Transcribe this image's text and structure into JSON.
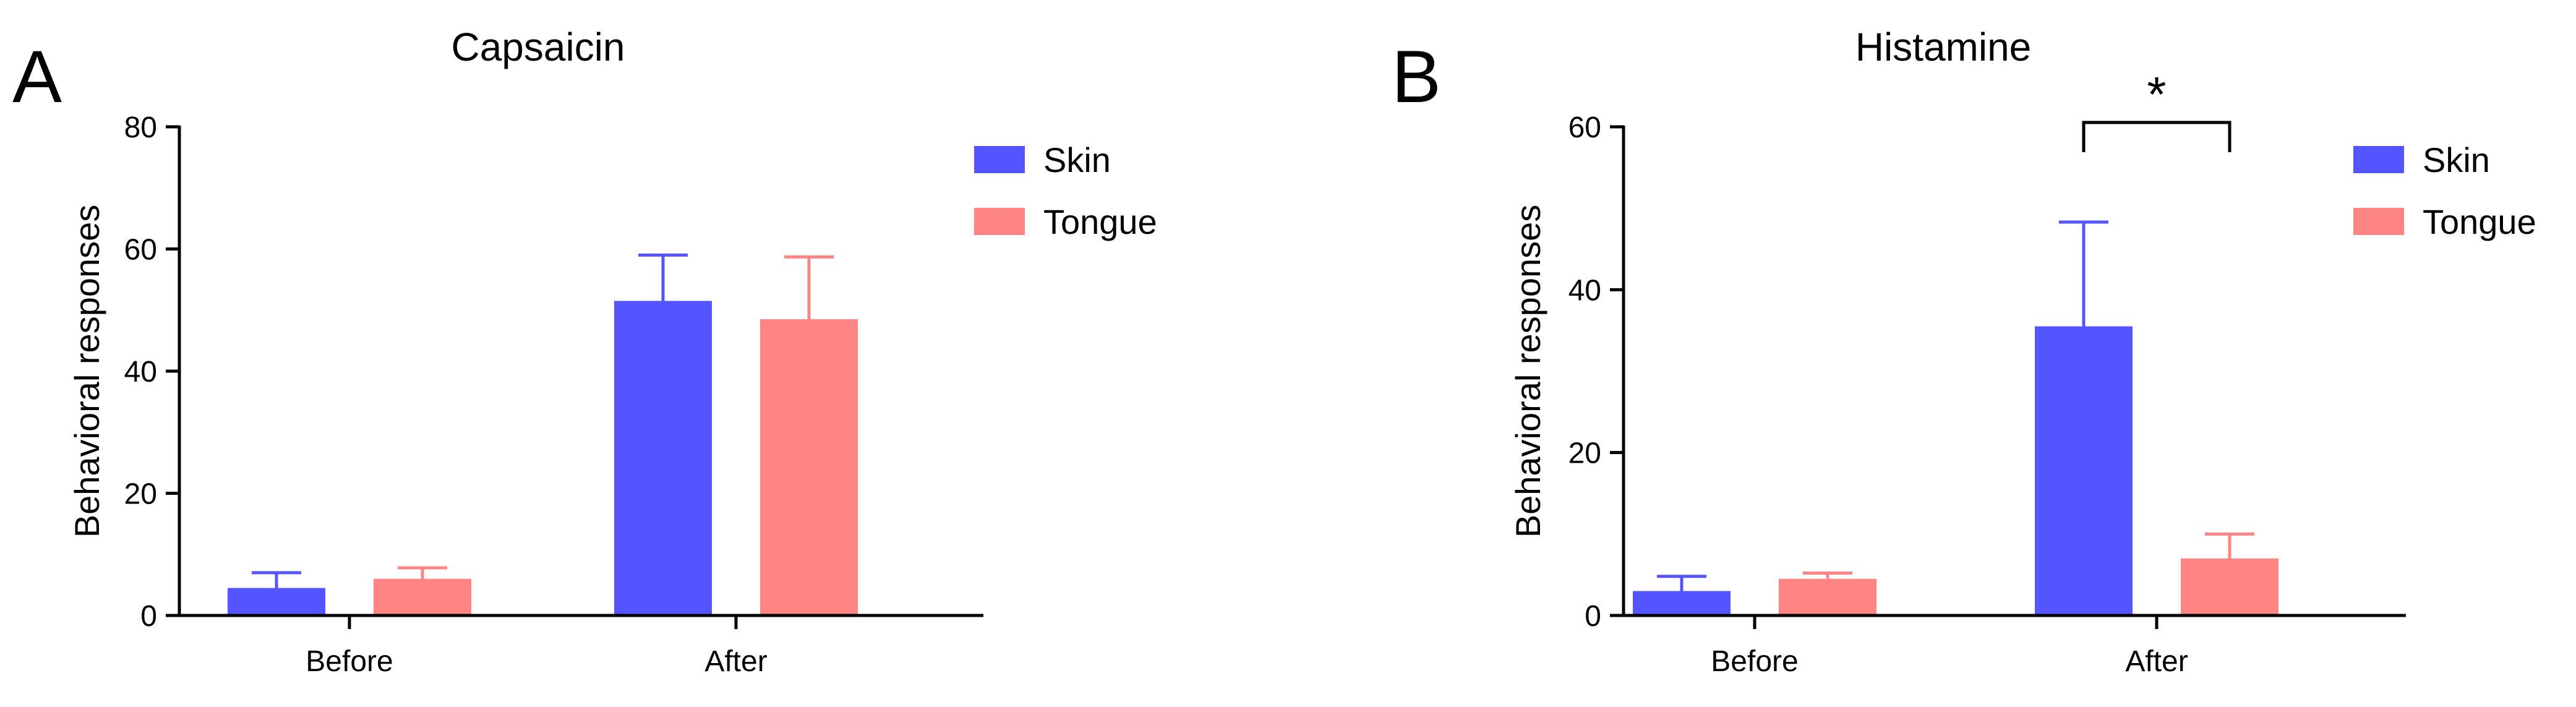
{
  "chart_data": [
    {
      "type": "bar",
      "panel": "A",
      "title": "Capsaicin",
      "xlabel": "",
      "ylabel": "Behavioral responses",
      "ylim": [
        0,
        80
      ],
      "yticks": [
        0,
        20,
        40,
        60,
        80
      ],
      "categories": [
        "Before",
        "After"
      ],
      "series": [
        {
          "name": "Skin",
          "color": "#5555ff",
          "values": [
            4.5,
            51.5
          ],
          "errors": [
            2.5,
            7.5
          ]
        },
        {
          "name": "Tongue",
          "color": "#ff8484",
          "values": [
            6.0,
            48.5
          ],
          "errors": [
            1.8,
            10.2
          ]
        }
      ],
      "legend": "top-right",
      "grid": false,
      "significance": []
    },
    {
      "type": "bar",
      "panel": "B",
      "title": "Histamine",
      "xlabel": "",
      "ylabel": "Behavioral responses",
      "ylim": [
        0,
        60
      ],
      "yticks": [
        0,
        20,
        40,
        60
      ],
      "categories": [
        "Before",
        "After"
      ],
      "series": [
        {
          "name": "Skin",
          "color": "#5555ff",
          "values": [
            3.0,
            35.5
          ],
          "errors": [
            1.8,
            12.8
          ]
        },
        {
          "name": "Tongue",
          "color": "#ff8484",
          "values": [
            4.5,
            7.0
          ],
          "errors": [
            0.7,
            3.0
          ]
        }
      ],
      "legend": "top-right",
      "grid": false,
      "significance": [
        {
          "category": "After",
          "label": "*"
        }
      ]
    }
  ]
}
